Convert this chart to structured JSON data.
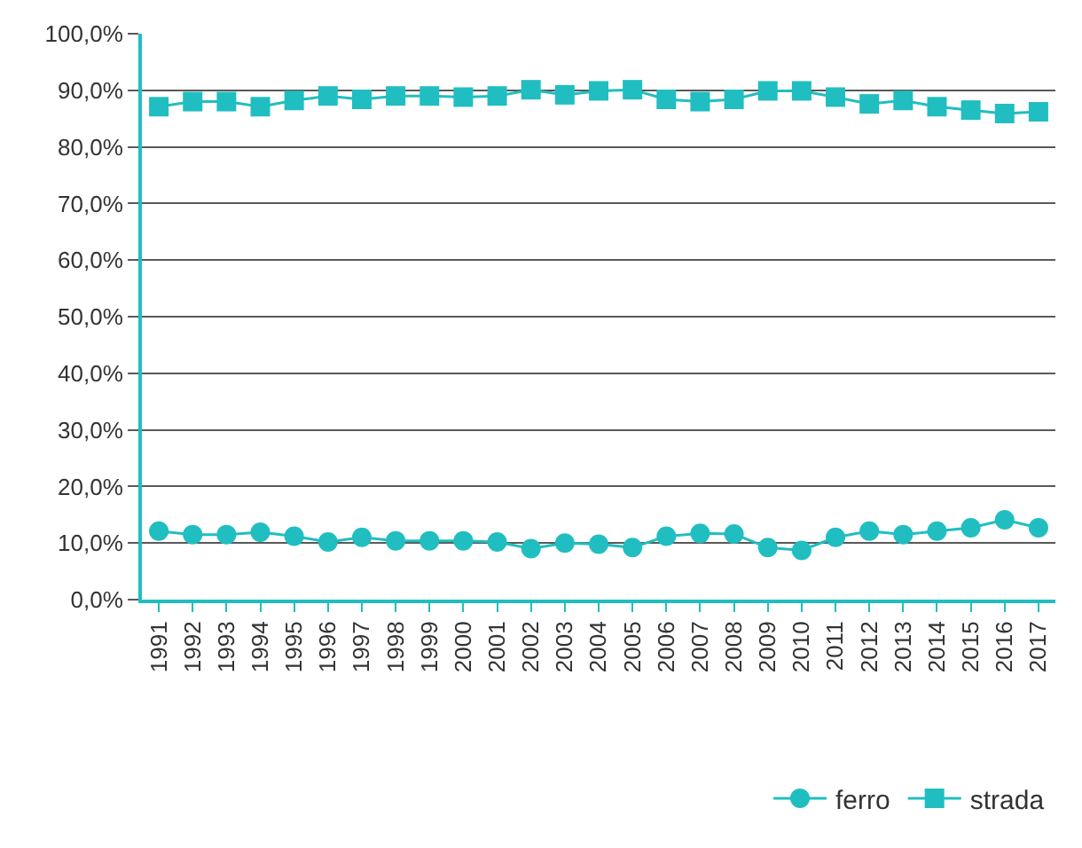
{
  "chart_data": {
    "type": "line",
    "categories": [
      "1991",
      "1992",
      "1993",
      "1994",
      "1995",
      "1996",
      "1997",
      "1998",
      "1999",
      "2000",
      "2001",
      "2002",
      "2003",
      "2004",
      "2005",
      "2006",
      "2007",
      "2008",
      "2009",
      "2010",
      "2011",
      "2012",
      "2013",
      "2014",
      "2015",
      "2016",
      "2017"
    ],
    "series": [
      {
        "name": "ferro",
        "color": "#20bec0",
        "marker": "circle",
        "values": [
          12.1,
          11.5,
          11.5,
          11.9,
          11.2,
          10.2,
          11.0,
          10.4,
          10.4,
          10.4,
          10.2,
          9.0,
          10.0,
          9.8,
          9.2,
          11.2,
          11.7,
          11.6,
          9.2,
          8.7,
          11.0,
          12.1,
          11.5,
          12.1,
          12.7,
          14.1,
          12.7
        ]
      },
      {
        "name": "strada",
        "color": "#20bec0",
        "marker": "square",
        "values": [
          87.1,
          88.0,
          88.0,
          87.1,
          88.2,
          89.0,
          88.4,
          89.0,
          89.0,
          88.8,
          89.0,
          90.1,
          89.2,
          89.9,
          90.1,
          88.4,
          88.0,
          88.4,
          89.9,
          89.9,
          88.8,
          87.6,
          88.2,
          87.1,
          86.5,
          85.9,
          86.2
        ]
      }
    ],
    "ylim": [
      0,
      100
    ],
    "yticks": [
      {
        "value": 0,
        "label": "0,0%"
      },
      {
        "value": 10,
        "label": "10,0%"
      },
      {
        "value": 20,
        "label": "20,0%"
      },
      {
        "value": 30,
        "label": "30,0%"
      },
      {
        "value": 40,
        "label": "40,0%"
      },
      {
        "value": 50,
        "label": "50,0%"
      },
      {
        "value": 60,
        "label": "60,0%"
      },
      {
        "value": 70,
        "label": "70,0%"
      },
      {
        "value": 80,
        "label": "80,0%"
      },
      {
        "value": 90,
        "label": "90,0%"
      },
      {
        "value": 100,
        "label": "100,0%"
      }
    ],
    "grid": "y",
    "legend": "bottom right",
    "line_style": "solid"
  }
}
